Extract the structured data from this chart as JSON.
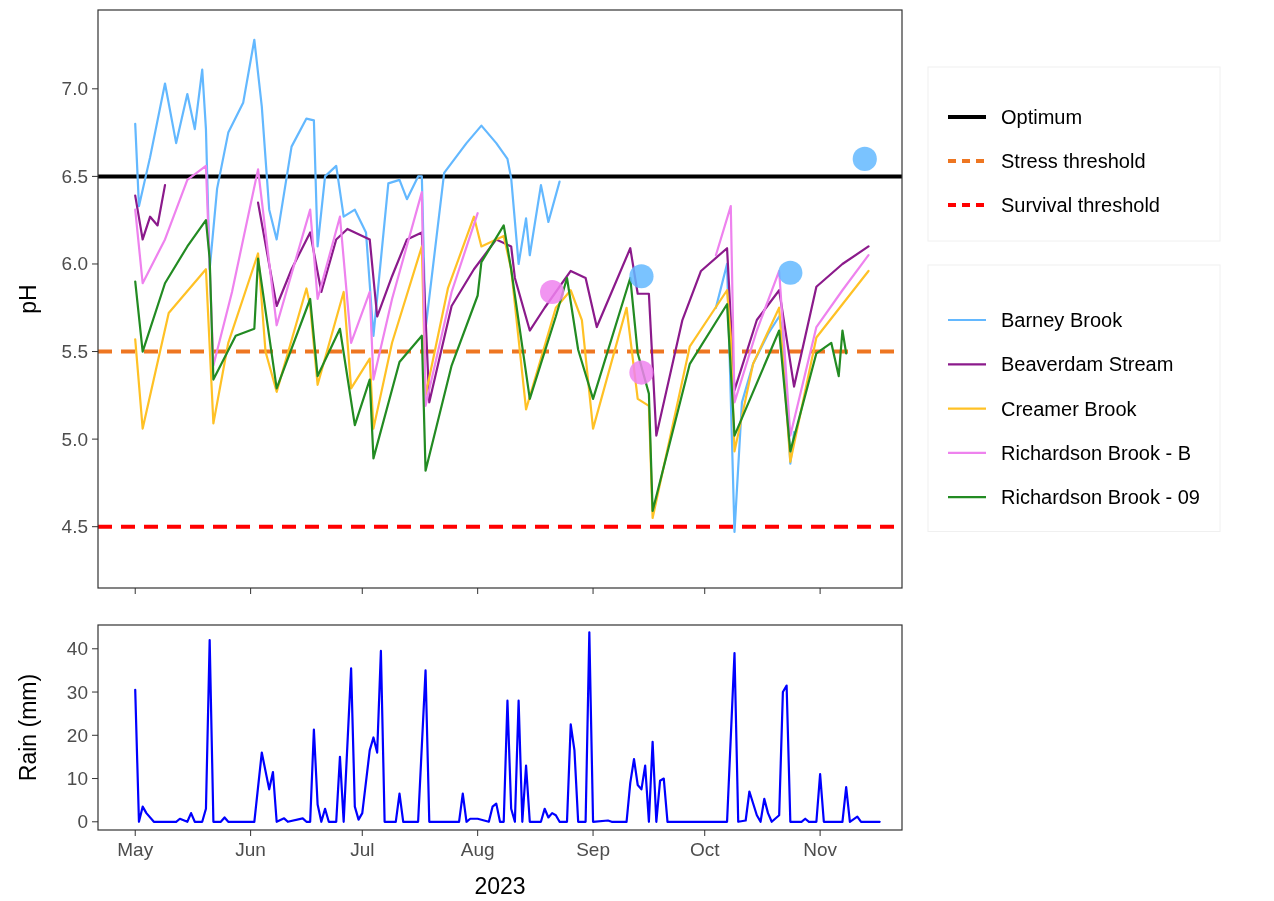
{
  "chart_data": [
    {
      "type": "line",
      "ylabel": "pH",
      "legend": "right",
      "tick_labels": "y",
      "xlim": [
        "2023-04-21",
        "2023-11-23"
      ],
      "ylim": [
        4.15,
        7.45
      ],
      "xticks": [
        {
          "value": "2023-05-01",
          "label": null
        },
        {
          "value": "2023-06-01",
          "label": null
        },
        {
          "value": "2023-07-01",
          "label": null
        },
        {
          "value": "2023-08-01",
          "label": null
        },
        {
          "value": "2023-09-01",
          "label": null
        },
        {
          "value": "2023-10-01",
          "label": null
        },
        {
          "value": "2023-11-01",
          "label": null
        }
      ],
      "yticks": [
        4.5,
        {
          "value": 5,
          "label": "5.0"
        },
        5.5,
        {
          "value": 6,
          "label": "6.0"
        },
        6.5,
        {
          "value": 7,
          "label": "7.0"
        }
      ],
      "ref_lines": [
        {
          "axis": "y",
          "value": 6.5,
          "label": "Optimum",
          "color": "#000000",
          "line_style": "solid"
        },
        {
          "axis": "y",
          "value": 5.5,
          "label": "Stress threshold",
          "color": "#ee7621",
          "line_style": "dashed"
        },
        {
          "axis": "y",
          "value": 4.5,
          "label": "Survival threshold",
          "color": "#ff0000",
          "line_style": "dashed"
        }
      ],
      "series": [
        {
          "name": "Barney Brook",
          "color": "#63b8ff",
          "x": [
            "2023-05-01",
            "2023-05-02",
            "2023-05-05",
            "2023-05-09",
            "2023-05-12",
            "2023-05-15",
            "2023-05-17",
            "2023-05-19",
            "2023-05-20",
            "2023-05-21",
            "2023-05-23",
            "2023-05-26",
            "2023-05-30",
            "2023-06-02",
            "2023-06-04",
            "2023-06-06",
            "2023-06-08",
            "2023-06-12",
            "2023-06-16",
            "2023-06-18",
            "2023-06-19",
            "2023-06-21",
            "2023-06-24",
            "2023-06-26",
            "2023-06-29",
            "2023-07-02",
            "2023-07-04",
            "2023-07-08",
            "2023-07-11",
            "2023-07-13",
            "2023-07-16",
            "2023-07-17",
            "2023-07-18",
            "2023-07-23",
            "2023-07-29",
            "2023-08-02",
            "2023-08-06",
            "2023-08-09",
            "2023-08-10",
            "2023-08-12",
            "2023-08-14",
            "2023-08-15",
            "2023-08-18",
            "2023-08-20",
            "2023-08-23",
            "2023-09-01",
            "2023-10-04",
            "2023-10-07",
            "2023-10-09",
            "2023-10-11",
            "2023-10-14",
            "2023-10-18",
            "2023-10-21",
            "2023-10-22",
            "2023-10-24",
            "2023-10-25"
          ],
          "values": [
            6.8,
            6.33,
            6.61,
            7.03,
            6.69,
            6.97,
            6.77,
            7.11,
            6.77,
            5.97,
            6.43,
            6.75,
            6.92,
            7.28,
            6.9,
            6.31,
            6.14,
            6.67,
            6.83,
            6.82,
            6.1,
            6.5,
            6.56,
            6.27,
            6.31,
            6.18,
            5.59,
            6.46,
            6.48,
            6.37,
            6.5,
            6.5,
            5.63,
            6.52,
            6.69,
            6.79,
            6.69,
            6.6,
            6.49,
            6.0,
            6.26,
            6.05,
            6.45,
            6.24,
            6.47,
            null,
            5.75,
            6.0,
            4.47,
            5.21,
            5.43,
            5.6,
            5.7,
            5.62,
            4.86,
            5.04
          ]
        },
        {
          "name": "Beaverdam Stream",
          "color": "#8b1a8b",
          "x": [
            "2023-05-01",
            "2023-05-03",
            "2023-05-05",
            "2023-05-07",
            "2023-05-09",
            "2023-05-20",
            "2023-06-03",
            "2023-06-08",
            "2023-06-12",
            "2023-06-17",
            "2023-06-20",
            "2023-06-24",
            "2023-06-27",
            "2023-07-03",
            "2023-07-05",
            "2023-07-09",
            "2023-07-13",
            "2023-07-17",
            "2023-07-19",
            "2023-07-25",
            "2023-07-31",
            "2023-08-06",
            "2023-08-10",
            "2023-08-11",
            "2023-08-15",
            "2023-08-19",
            "2023-08-26",
            "2023-08-30",
            "2023-09-02",
            "2023-09-11",
            "2023-09-13",
            "2023-09-16",
            "2023-09-18",
            "2023-09-25",
            "2023-09-30",
            "2023-10-07",
            "2023-10-09",
            "2023-10-15",
            "2023-10-21",
            "2023-10-25",
            "2023-10-31",
            "2023-11-07",
            "2023-11-14"
          ],
          "values": [
            6.39,
            6.14,
            6.27,
            6.22,
            6.45,
            null,
            6.35,
            5.76,
            5.97,
            6.18,
            5.84,
            6.14,
            6.2,
            6.14,
            5.7,
            5.93,
            6.14,
            6.18,
            5.21,
            5.76,
            5.97,
            6.14,
            6.1,
            5.92,
            5.62,
            5.75,
            5.96,
            5.92,
            5.64,
            6.09,
            5.83,
            5.83,
            5.02,
            5.68,
            5.96,
            6.09,
            5.28,
            5.68,
            5.85,
            5.3,
            5.87,
            6.0,
            6.1
          ]
        },
        {
          "name": "Creamer Brook",
          "color": "#ffc125",
          "x": [
            "2023-05-01",
            "2023-05-03",
            "2023-05-10",
            "2023-05-20",
            "2023-05-22",
            "2023-05-26",
            "2023-06-03",
            "2023-06-05",
            "2023-06-08",
            "2023-06-16",
            "2023-06-17",
            "2023-06-19",
            "2023-06-26",
            "2023-06-28",
            "2023-07-03",
            "2023-07-04",
            "2023-07-09",
            "2023-07-17",
            "2023-07-18",
            "2023-07-24",
            "2023-07-31",
            "2023-08-02",
            "2023-08-08",
            "2023-08-10",
            "2023-08-14",
            "2023-08-22",
            "2023-08-26",
            "2023-08-29",
            "2023-09-01",
            "2023-09-10",
            "2023-09-13",
            "2023-09-16",
            "2023-09-17",
            "2023-09-27",
            "2023-10-07",
            "2023-10-08",
            "2023-10-09",
            "2023-10-14",
            "2023-10-21",
            "2023-10-24",
            "2023-10-31",
            "2023-11-07",
            "2023-11-14"
          ],
          "values": [
            5.57,
            5.06,
            5.72,
            5.97,
            5.09,
            5.55,
            6.06,
            5.5,
            5.27,
            5.86,
            5.76,
            5.31,
            5.84,
            5.29,
            5.46,
            5.06,
            5.55,
            6.1,
            5.25,
            5.86,
            6.27,
            6.1,
            6.16,
            5.97,
            5.17,
            5.75,
            5.85,
            5.68,
            5.06,
            5.75,
            5.23,
            5.19,
            4.55,
            5.53,
            5.85,
            5.58,
            4.93,
            5.43,
            5.75,
            4.87,
            5.58,
            5.77,
            5.96
          ]
        },
        {
          "name": "Richardson Brook - B",
          "color": "#ee82ee",
          "x": [
            "2023-05-01",
            "2023-05-03",
            "2023-05-09",
            "2023-05-15",
            "2023-05-20",
            "2023-05-22",
            "2023-05-27",
            "2023-06-03",
            "2023-06-08",
            "2023-06-17",
            "2023-06-19",
            "2023-06-25",
            "2023-06-28",
            "2023-07-03",
            "2023-07-04",
            "2023-07-09",
            "2023-07-17",
            "2023-07-18",
            "2023-07-25",
            "2023-08-01",
            "2023-09-01",
            "2023-10-04",
            "2023-10-08",
            "2023-10-09",
            "2023-10-15",
            "2023-10-21",
            "2023-10-24",
            "2023-10-31",
            "2023-11-07",
            "2023-11-14"
          ],
          "values": [
            6.31,
            5.89,
            6.14,
            6.48,
            6.56,
            5.42,
            5.84,
            6.54,
            5.65,
            6.31,
            5.8,
            6.27,
            5.55,
            5.84,
            5.34,
            5.8,
            6.41,
            5.19,
            5.84,
            6.29,
            null,
            6.05,
            6.33,
            5.21,
            5.62,
            5.96,
            5.02,
            5.64,
            5.85,
            6.05
          ]
        },
        {
          "name": "Richardson Brook - 09",
          "color": "#228b22",
          "x": [
            "2023-05-01",
            "2023-05-03",
            "2023-05-09",
            "2023-05-15",
            "2023-05-20",
            "2023-05-21",
            "2023-05-22",
            "2023-05-28",
            "2023-06-02",
            "2023-06-03",
            "2023-06-08",
            "2023-06-17",
            "2023-06-19",
            "2023-06-25",
            "2023-06-29",
            "2023-07-03",
            "2023-07-04",
            "2023-07-11",
            "2023-07-17",
            "2023-07-18",
            "2023-07-25",
            "2023-08-01",
            "2023-08-02",
            "2023-08-08",
            "2023-08-10",
            "2023-08-15",
            "2023-08-22",
            "2023-08-25",
            "2023-08-28",
            "2023-09-01",
            "2023-09-11",
            "2023-09-13",
            "2023-09-16",
            "2023-09-17",
            "2023-09-27",
            "2023-10-07",
            "2023-10-09",
            "2023-10-15",
            "2023-10-21",
            "2023-10-24",
            "2023-10-31",
            "2023-11-04",
            "2023-11-06",
            "2023-11-07",
            "2023-11-08"
          ],
          "values": [
            5.9,
            5.5,
            5.89,
            6.1,
            6.25,
            6.03,
            5.34,
            5.59,
            5.63,
            6.03,
            5.29,
            5.8,
            5.36,
            5.63,
            5.08,
            5.34,
            4.89,
            5.44,
            5.59,
            4.82,
            5.42,
            5.82,
            6.01,
            6.22,
            5.97,
            5.23,
            5.7,
            5.92,
            5.51,
            5.23,
            5.92,
            5.49,
            5.26,
            4.59,
            5.43,
            5.77,
            5.02,
            5.32,
            5.62,
            4.93,
            5.49,
            5.55,
            5.36,
            5.62,
            5.49
          ]
        },
        {
          "type": "scatter",
          "marker": "circle",
          "color": "#63b8ff",
          "x": [
            "2023-09-14",
            "2023-10-24",
            "2023-11-13"
          ],
          "values": [
            5.93,
            5.95,
            6.6
          ]
        },
        {
          "type": "scatter",
          "marker": "circle",
          "color": "#ee82ee",
          "x": [
            "2023-08-21",
            "2023-09-14"
          ],
          "values": [
            5.84,
            5.38
          ]
        }
      ]
    },
    {
      "type": "line",
      "ylabel": "Rain (mm)",
      "xlabel": "2023",
      "xlim": [
        "2023-04-21",
        "2023-11-23"
      ],
      "ylim": [
        -1.9,
        45.5
      ],
      "xticks": [
        {
          "value": "2023-05-01",
          "label": "May"
        },
        {
          "value": "2023-06-01",
          "label": "Jun"
        },
        {
          "value": "2023-07-01",
          "label": "Jul"
        },
        {
          "value": "2023-08-01",
          "label": "Aug"
        },
        {
          "value": "2023-09-01",
          "label": "Sep"
        },
        {
          "value": "2023-10-01",
          "label": "Oct"
        },
        {
          "value": "2023-11-01",
          "label": "Nov"
        }
      ],
      "yticks": [
        0,
        10,
        20,
        30,
        40
      ],
      "series": [
        {
          "color": "#0000ff",
          "x": [
            "2023-05-01",
            "2023-05-02",
            "2023-05-03",
            "2023-05-04",
            "2023-05-06",
            "2023-05-12",
            "2023-05-13",
            "2023-05-15",
            "2023-05-16",
            "2023-05-17",
            "2023-05-19",
            "2023-05-20",
            "2023-05-21",
            "2023-05-22",
            "2023-05-24",
            "2023-05-25",
            "2023-05-26",
            "2023-06-02",
            "2023-06-04",
            "2023-06-06",
            "2023-06-07",
            "2023-06-08",
            "2023-06-10",
            "2023-06-11",
            "2023-06-15",
            "2023-06-16",
            "2023-06-17",
            "2023-06-18",
            "2023-06-19",
            "2023-06-20",
            "2023-06-21",
            "2023-06-22",
            "2023-06-24",
            "2023-06-25",
            "2023-06-26",
            "2023-06-28",
            "2023-06-29",
            "2023-06-30",
            "2023-07-01",
            "2023-07-03",
            "2023-07-04",
            "2023-07-05",
            "2023-07-06",
            "2023-07-07",
            "2023-07-10",
            "2023-07-11",
            "2023-07-12",
            "2023-07-16",
            "2023-07-18",
            "2023-07-19",
            "2023-07-27",
            "2023-07-28",
            "2023-07-29",
            "2023-07-30",
            "2023-08-01",
            "2023-08-04",
            "2023-08-05",
            "2023-08-06",
            "2023-08-07",
            "2023-08-08",
            "2023-08-09",
            "2023-08-10",
            "2023-08-11",
            "2023-08-12",
            "2023-08-13",
            "2023-08-14",
            "2023-08-15",
            "2023-08-18",
            "2023-08-19",
            "2023-08-20",
            "2023-08-21",
            "2023-08-22",
            "2023-08-23",
            "2023-08-25",
            "2023-08-26",
            "2023-08-27",
            "2023-08-28",
            "2023-08-30",
            "2023-08-31",
            "2023-09-01",
            "2023-09-05",
            "2023-09-06",
            "2023-09-10",
            "2023-09-11",
            "2023-09-12",
            "2023-09-13",
            "2023-09-14",
            "2023-09-15",
            "2023-09-16",
            "2023-09-17",
            "2023-09-18",
            "2023-09-19",
            "2023-09-20",
            "2023-09-21",
            "2023-10-07",
            "2023-10-09",
            "2023-10-10",
            "2023-10-12",
            "2023-10-13",
            "2023-10-15",
            "2023-10-16",
            "2023-10-17",
            "2023-10-18",
            "2023-10-19",
            "2023-10-21",
            "2023-10-22",
            "2023-10-23",
            "2023-10-24",
            "2023-10-27",
            "2023-10-28",
            "2023-10-29",
            "2023-10-31",
            "2023-11-01",
            "2023-11-02",
            "2023-11-07",
            "2023-11-08",
            "2023-11-09",
            "2023-11-11",
            "2023-11-12",
            "2023-11-17"
          ],
          "values": [
            30.5,
            0,
            3.5,
            2,
            0,
            0,
            0.7,
            0,
            2,
            0,
            0,
            3,
            42,
            0,
            0,
            1,
            0,
            0,
            16,
            7.5,
            11.5,
            0,
            0.8,
            0,
            0.8,
            0,
            0,
            21.3,
            4,
            0,
            3,
            0,
            0,
            15,
            0,
            35.5,
            3.5,
            0.5,
            2,
            16.5,
            19.5,
            16,
            39.5,
            0,
            0,
            6.5,
            0,
            0,
            35,
            0,
            0,
            6.5,
            0,
            0.7,
            0.7,
            0,
            3.5,
            4.2,
            0,
            0,
            28,
            3,
            0,
            28,
            0,
            13,
            0,
            0,
            3,
            1,
            2,
            1.5,
            0,
            0,
            22.5,
            16.5,
            0,
            0,
            43.8,
            0,
            0.3,
            0,
            0,
            9,
            14.5,
            8.5,
            7.5,
            13,
            0,
            18.5,
            0,
            9.5,
            10,
            0,
            0,
            39,
            0,
            0.3,
            7,
            1.5,
            0,
            5.3,
            2,
            0,
            1.5,
            30,
            31.5,
            0,
            0,
            0.7,
            0,
            0,
            11,
            0,
            0,
            8,
            0,
            1.2,
            0,
            0
          ]
        }
      ]
    }
  ]
}
